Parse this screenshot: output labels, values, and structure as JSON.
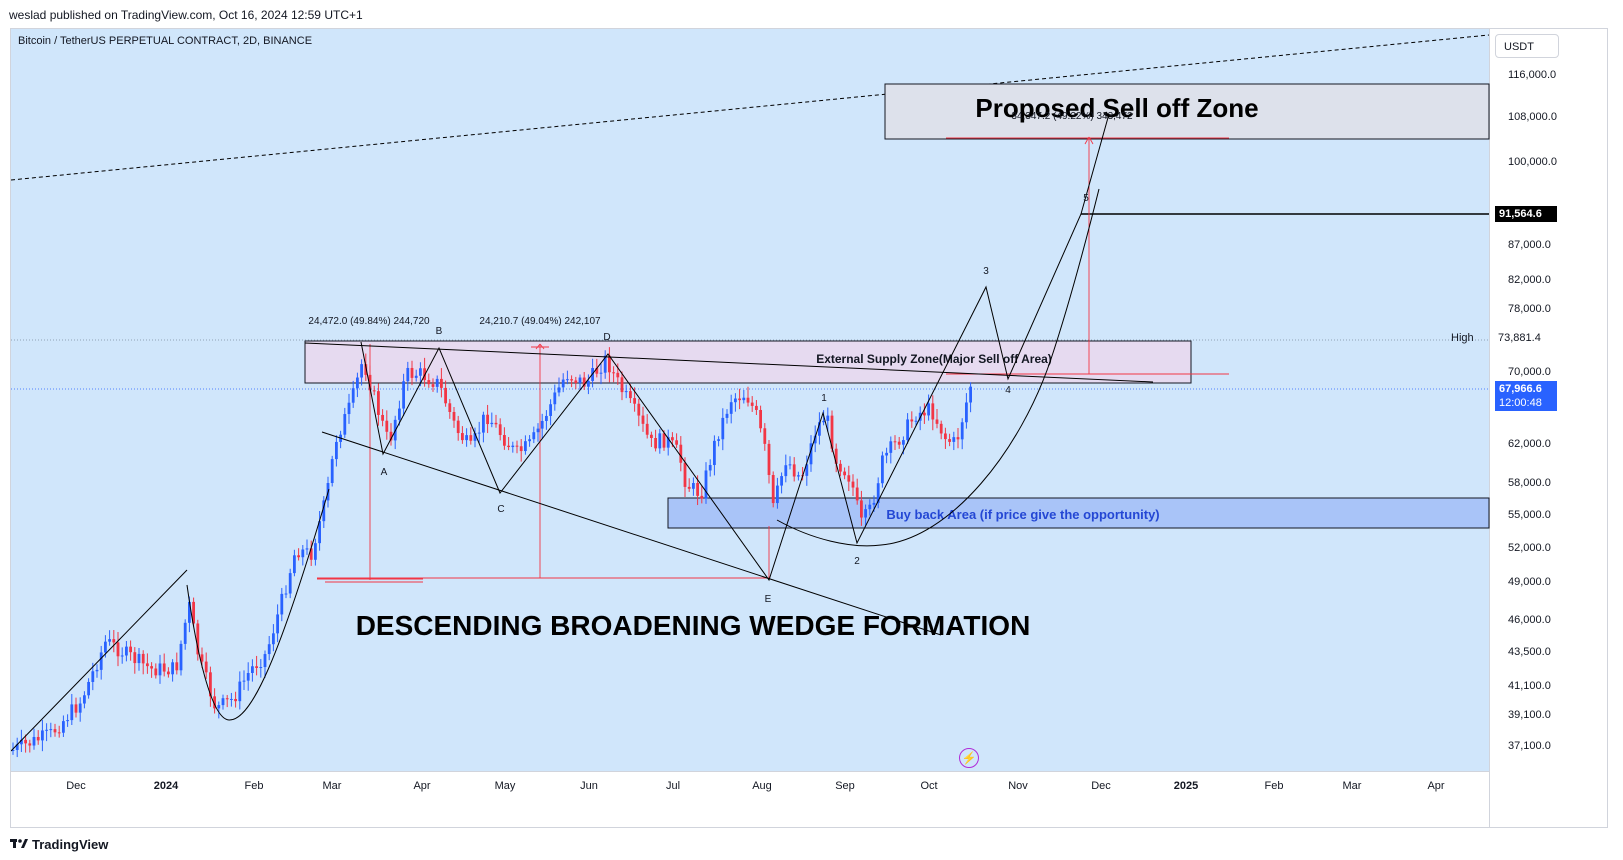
{
  "header": {
    "attribution": "weslad published on TradingView.com, Oct 16, 2024 12:59 UTC+1"
  },
  "chart": {
    "symbol": "Bitcoin / TetherUS PERPETUAL CONTRACT, 2D, BINANCE",
    "currency": "USDT",
    "background": "#d0e6fb",
    "price_axis": [
      "116,000.0",
      "108,000.0",
      "100,000.0",
      "87,000.0",
      "82,000.0",
      "78,000.0",
      "70,000.0",
      "62,000.0",
      "58,000.0",
      "55,000.0",
      "52,000.0",
      "49,000.0",
      "46,000.0",
      "43,500.0",
      "41,100.0",
      "39,100.0",
      "37,100.0"
    ],
    "time_axis": [
      "Dec",
      "2024",
      "Feb",
      "Mar",
      "Apr",
      "May",
      "Jun",
      "Jul",
      "Aug",
      "Sep",
      "Oct",
      "Nov",
      "Dec",
      "2025",
      "Feb",
      "Mar",
      "Apr"
    ],
    "tag_target": "91,564.6",
    "high_label": "High",
    "high_value": "73,881.4",
    "current_price": "67,966.6",
    "countdown": "12:00:48",
    "colors": {
      "up": "#2962ff",
      "down": "#f23645",
      "accent": "#2962ff"
    }
  },
  "annotations": {
    "sell_zone": "Proposed Sell off Zone",
    "sell_zone_measure": "34,347.2 (49.22%) 343,472",
    "supply_zone": "External Supply Zone(Major Sell off Area)",
    "buy_zone": "Buy back Area (if price give the opportunity)",
    "pattern_title": "DESCENDING BROADENING WEDGE FORMATION",
    "measure_1": "24,472.0 (49.84%) 244,720",
    "measure_2": "24,210.7 (49.04%) 242,107",
    "wave_labels": [
      "A",
      "B",
      "C",
      "D",
      "E",
      "1",
      "2",
      "3",
      "4",
      "5"
    ]
  },
  "footer": {
    "brand": "TradingView"
  },
  "icons": {
    "lightning": "lightning-icon",
    "logo": "tradingview-logo-icon"
  }
}
